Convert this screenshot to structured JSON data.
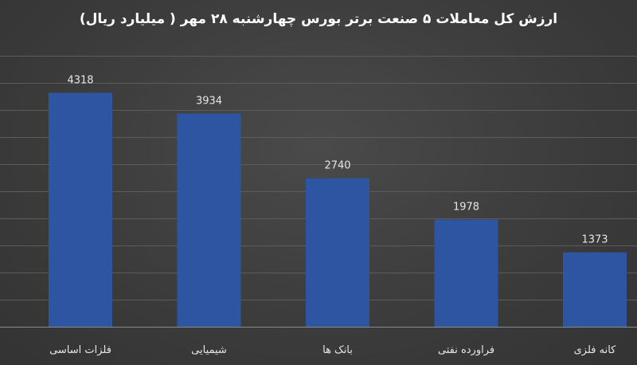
{
  "chart_data": {
    "type": "bar",
    "title": "ارزش کل معاملات ۵ صنعت برتر بورس چهارشنبه ۲۸ مهر ( میلیارد ریال)",
    "categories": [
      "فلزات اساسی",
      "شیمیایی",
      "بانک ها",
      "فراورده نفتی",
      "کانه فلزی"
    ],
    "values": [
      4318,
      3934,
      2740,
      1978,
      1373
    ],
    "data_labels": [
      "4318",
      "3934",
      "2740",
      "1978",
      "1373"
    ],
    "xlabel": "",
    "ylabel": "",
    "ylim": [
      0,
      5000
    ],
    "grid": true,
    "legend": "none",
    "bar_color": "#2e55a2"
  }
}
